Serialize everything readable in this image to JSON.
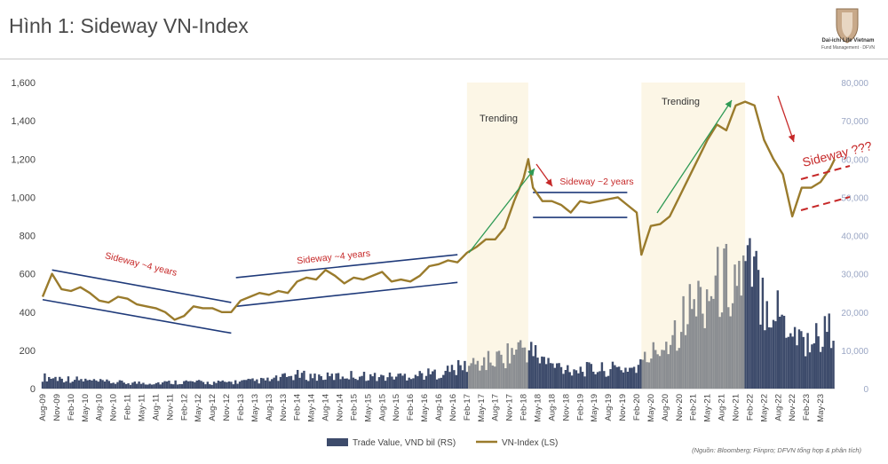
{
  "title": "Hình 1: Sideway VN-Index",
  "logo": {
    "name": "Dai-ichi Life Vietnam",
    "sub": "Fund Management · DFVN"
  },
  "source_note": "(Nguồn: Bloomberg; Fiinpro; DFVN tổng hợp & phân tích)",
  "colors": {
    "index": "#9a7b2c",
    "volume_dark": "#3d4b6b",
    "volume_light": "#8b8e92",
    "band": "#fcf6e6",
    "channel": "#1f3a7a",
    "arrow_green": "#2f9a55",
    "annotation_red": "#c62828"
  },
  "chart_data": {
    "type": "line",
    "title": "",
    "xlabel": "",
    "ylabel": "",
    "ylim": [
      0,
      1600
    ],
    "y2lim": [
      0,
      80000
    ],
    "y_ticks": [
      "0",
      "200",
      "400",
      "600",
      "800",
      "1,000",
      "1,200",
      "1,400",
      "1,600"
    ],
    "y2_ticks": [
      "0",
      "10,000",
      "20,000",
      "30,000",
      "40,000",
      "50,000",
      "60,000",
      "70,000",
      "80,000"
    ],
    "x_ticks": [
      "Aug-09",
      "Nov-09",
      "Feb-10",
      "May-10",
      "Aug-10",
      "Nov-10",
      "Feb-11",
      "May-11",
      "Aug-11",
      "Nov-11",
      "Feb-12",
      "May-12",
      "Aug-12",
      "Nov-12",
      "Feb-13",
      "May-13",
      "Aug-13",
      "Nov-13",
      "Feb-14",
      "May-14",
      "Aug-14",
      "Nov-14",
      "Feb-15",
      "May-15",
      "Aug-15",
      "Nov-15",
      "Feb-16",
      "May-16",
      "Aug-16",
      "Nov-16",
      "Feb-17",
      "May-17",
      "Aug-17",
      "Nov-17",
      "Feb-18",
      "May-18",
      "Aug-18",
      "Nov-18",
      "Feb-19",
      "May-19",
      "Aug-19",
      "Nov-19",
      "Feb-20",
      "May-20",
      "Aug-20",
      "Nov-20",
      "Feb-21",
      "May-21",
      "Aug-21",
      "Nov-21",
      "Feb-22",
      "May-22",
      "Aug-22",
      "Nov-22",
      "Feb-23",
      "May-23"
    ],
    "x_range": [
      "2009-08",
      "2023-08"
    ],
    "legend": {
      "position": "bottom",
      "entries": [
        "Trade Value, VND bil (RS)",
        "VN-Index (LS)"
      ]
    },
    "series": [
      {
        "name": "VN-Index (LS)",
        "axis": "left",
        "x": [
          "2009-08",
          "2009-10",
          "2009-12",
          "2010-02",
          "2010-04",
          "2010-06",
          "2010-08",
          "2010-10",
          "2010-12",
          "2011-02",
          "2011-04",
          "2011-06",
          "2011-08",
          "2011-10",
          "2011-12",
          "2012-02",
          "2012-04",
          "2012-06",
          "2012-08",
          "2012-10",
          "2012-12",
          "2013-02",
          "2013-04",
          "2013-06",
          "2013-08",
          "2013-10",
          "2013-12",
          "2014-02",
          "2014-04",
          "2014-06",
          "2014-08",
          "2014-10",
          "2014-12",
          "2015-02",
          "2015-04",
          "2015-06",
          "2015-08",
          "2015-10",
          "2015-12",
          "2016-02",
          "2016-04",
          "2016-06",
          "2016-08",
          "2016-10",
          "2016-12",
          "2017-02",
          "2017-04",
          "2017-06",
          "2017-08",
          "2017-10",
          "2017-12",
          "2018-02",
          "2018-03",
          "2018-04",
          "2018-06",
          "2018-08",
          "2018-10",
          "2018-12",
          "2019-02",
          "2019-04",
          "2019-06",
          "2019-08",
          "2019-10",
          "2019-12",
          "2020-02",
          "2020-03",
          "2020-05",
          "2020-07",
          "2020-09",
          "2020-11",
          "2021-01",
          "2021-03",
          "2021-05",
          "2021-07",
          "2021-09",
          "2021-11",
          "2022-01",
          "2022-03",
          "2022-05",
          "2022-07",
          "2022-09",
          "2022-11",
          "2023-01",
          "2023-03",
          "2023-05",
          "2023-07",
          "2023-08"
        ],
        "values": [
          480,
          600,
          520,
          510,
          530,
          500,
          460,
          450,
          480,
          470,
          440,
          430,
          420,
          400,
          360,
          380,
          430,
          420,
          420,
          400,
          400,
          460,
          480,
          500,
          490,
          510,
          500,
          560,
          580,
          570,
          620,
          590,
          550,
          580,
          570,
          590,
          610,
          560,
          570,
          560,
          590,
          640,
          650,
          670,
          660,
          710,
          740,
          780,
          780,
          840,
          980,
          1100,
          1200,
          1050,
          980,
          980,
          960,
          920,
          980,
          970,
          980,
          990,
          1000,
          960,
          920,
          700,
          850,
          860,
          900,
          1000,
          1100,
          1200,
          1300,
          1380,
          1350,
          1480,
          1500,
          1480,
          1300,
          1200,
          1120,
          900,
          1050,
          1050,
          1080,
          1150,
          1200
        ]
      },
      {
        "name": "Trade Value, VND bil (RS)",
        "axis": "right",
        "type": "bar",
        "x": [
          "2009-08",
          "2010-02",
          "2010-08",
          "2011-02",
          "2011-08",
          "2012-02",
          "2012-08",
          "2013-02",
          "2013-08",
          "2014-02",
          "2014-08",
          "2015-02",
          "2015-08",
          "2016-02",
          "2016-08",
          "2017-02",
          "2017-08",
          "2018-02",
          "2018-08",
          "2019-02",
          "2019-08",
          "2020-02",
          "2020-08",
          "2021-02",
          "2021-08",
          "2022-02",
          "2022-08",
          "2023-02",
          "2023-08"
        ],
        "values": [
          3000,
          2500,
          1800,
          1500,
          1500,
          1800,
          1500,
          1800,
          2200,
          3500,
          3000,
          3500,
          3000,
          3500,
          4000,
          6000,
          7500,
          11000,
          6000,
          5000,
          5000,
          5500,
          12000,
          22000,
          28000,
          30000,
          20000,
          12000,
          16000
        ]
      }
    ],
    "annotations": [
      {
        "text": "Sideway ~4 years"
      },
      {
        "text": "Sideway ~4 years"
      },
      {
        "text": "Trending"
      },
      {
        "text": "Sideway ~2 years"
      },
      {
        "text": "Trending"
      },
      {
        "text": "Sideway ???"
      }
    ]
  }
}
